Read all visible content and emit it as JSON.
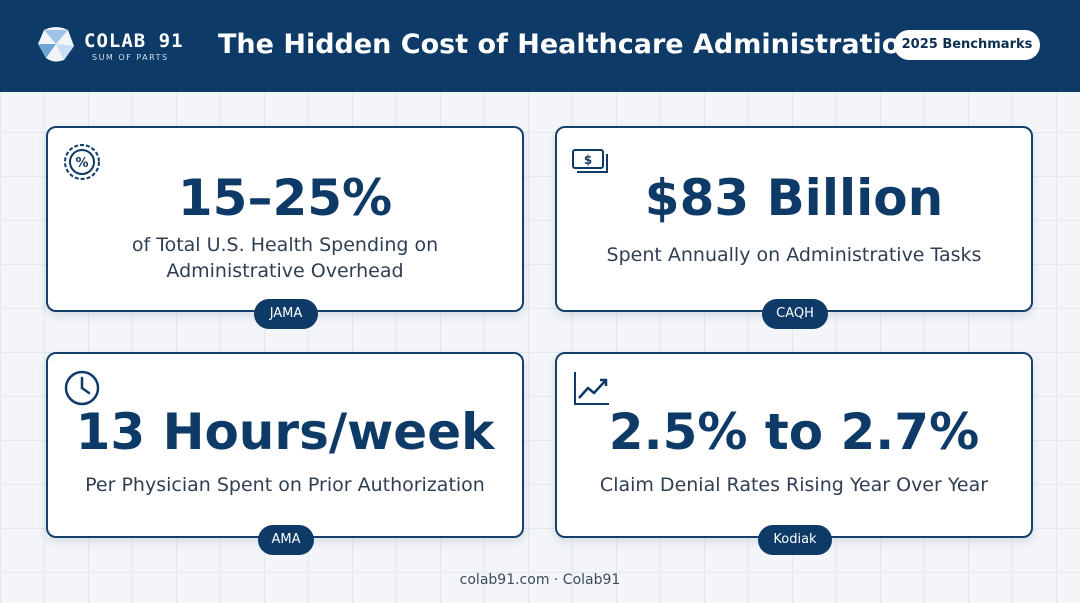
{
  "header": {
    "logo_name": "COLAB 91",
    "logo_tagline": "SUM OF PARTS",
    "title": "The Hidden Cost of Healthcare Administration",
    "badge": "2025 Benchmarks"
  },
  "cards": [
    {
      "icon": "percent-badge-icon",
      "stat": "15–25%",
      "desc_line1": "of Total U.S. Health Spending on",
      "desc_line2": "Administrative Overhead",
      "source": "JAMA"
    },
    {
      "icon": "cash-stack-icon",
      "stat": "$83 Billion",
      "desc_line1": "Spent Annually on Administrative Tasks",
      "source": "CAQH"
    },
    {
      "icon": "clock-icon",
      "stat": "13 Hours/week",
      "desc_line1": "Per Physician Spent on Prior Authorization",
      "source": "AMA"
    },
    {
      "icon": "trend-up-chart-icon",
      "stat": "2.5% to 2.7%",
      "desc_line1": "Claim Denial Rates Rising Year Over Year",
      "source": "Kodiak"
    }
  ],
  "footer": "colab91.com · Colab91",
  "colors": {
    "navy": "#0d3a66",
    "card_border": "#16406c",
    "text": "#2f3f52"
  }
}
